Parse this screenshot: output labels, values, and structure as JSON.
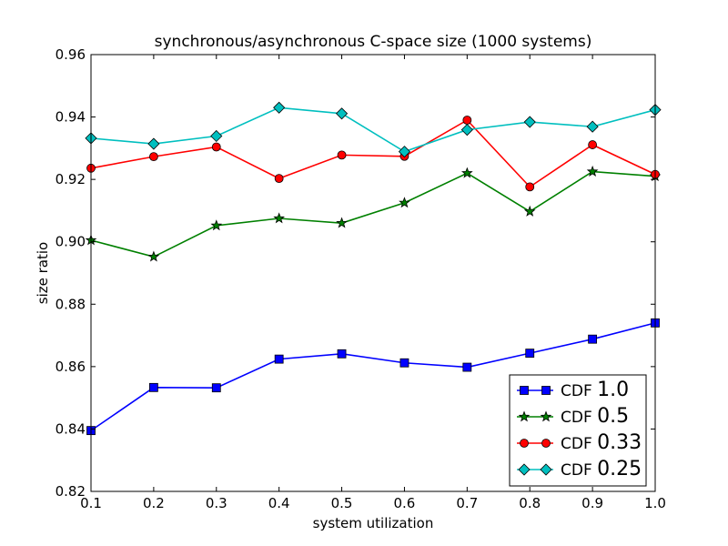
{
  "chart_data": {
    "type": "line",
    "title": "synchronous/asynchronous C-space size (1000 systems)",
    "xlabel": "system utilization",
    "ylabel": "size ratio",
    "xlim": [
      0.1,
      1.0
    ],
    "ylim": [
      0.82,
      0.96
    ],
    "xticks": [
      "0.1",
      "0.2",
      "0.3",
      "0.4",
      "0.5",
      "0.6",
      "0.7",
      "0.8",
      "0.9",
      "1.0"
    ],
    "yticks": [
      "0.82",
      "0.84",
      "0.86",
      "0.88",
      "0.90",
      "0.92",
      "0.94",
      "0.96"
    ],
    "grid": false,
    "legend_position": "bottom-right",
    "x": [
      0.1,
      0.2,
      0.3,
      0.4,
      0.5,
      0.6,
      0.7,
      0.8,
      0.9,
      1.0
    ],
    "series": [
      {
        "legend_prefix": "CDF",
        "legend_value": "1.0",
        "color": "#0000ff",
        "marker": "square",
        "values": [
          0.8395,
          0.8533,
          0.8532,
          0.8624,
          0.8641,
          0.8612,
          0.8598,
          0.8643,
          0.8688,
          0.874
        ]
      },
      {
        "legend_prefix": "CDF",
        "legend_value": "0.5",
        "color": "#008000",
        "marker": "star",
        "values": [
          0.9005,
          0.8952,
          0.9052,
          0.9075,
          0.906,
          0.9125,
          0.922,
          0.9097,
          0.9225,
          0.921
        ]
      },
      {
        "legend_prefix": "CDF",
        "legend_value": "0.33",
        "color": "#ff0000",
        "marker": "circle",
        "values": [
          0.9236,
          0.9273,
          0.9304,
          0.9203,
          0.9278,
          0.9274,
          0.939,
          0.9176,
          0.9311,
          0.9216
        ]
      },
      {
        "legend_prefix": "CDF",
        "legend_value": "0.25",
        "color": "#00bfbf",
        "marker": "diamond",
        "values": [
          0.9332,
          0.9314,
          0.9339,
          0.943,
          0.9411,
          0.9289,
          0.9359,
          0.9384,
          0.9369,
          0.9423
        ]
      }
    ]
  }
}
